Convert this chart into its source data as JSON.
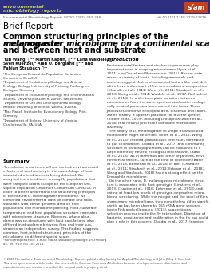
{
  "figsize": [
    2.63,
    3.46
  ],
  "dpi": 100,
  "bg_color": "#ffffff",
  "header_bg": "#2d3080",
  "header_text1": "environmental",
  "header_text2": "microbiology reports",
  "header_text_color": "#c8d44e",
  "slam_bg": "#c8401a",
  "slam_text": "s̸am",
  "journal_line": "Environmental Microbiology Reports (2020) 12(2), 220–228",
  "doi_line": "doi:10.1111/1758-2229.12828",
  "brief_report": "Brief Report",
  "title_part1": "Common structuring principles of the ",
  "title_italic1": "Drosophila",
  "title_italic2": "melanogaster",
  "title_part2": " microbiome on a continental scale",
  "title_part3": "and between host and substrate",
  "authors_line1": "Yun Wang, ⓘ¹² Martin Kapun, ⓘ¹²³ Lana Waidele, ⓘ¹²",
  "authors_line2": "Sven Kuenzel,² Alan O. Bergland ⓘ¹³⁴ and",
  "authors_line3": "Fabian Staubach ⓘ¹²",
  "affiliations": "¹The European Drosophila Population Genomics\nConsortium (DrosEU).\n²Department of Evolutionary Biology and Animal\nEcology, Biology I, University of Freiburg, Freiburg im\nBreisgau, Germany.\n³Department of Evolutionary Biology and Environmental\nStudies, University of Zürich, Zürich, Switzerland.\n⁴Department of Cell and Developmental Biology,\nMedical University of Vienna, Vienna, Austria.\n⁵Max Planck Institute for Evolutionary Biology, Plön,\nGermany.\n⁶Department of Biology, University of Virginia,\nCharlottesville, VA, USA.",
  "summary_title": "Summary",
  "summary_text": "The relative importance of host control, environmental\neffects and stochasticity in the assemblage of host-\nassociated microbiomes is being debated. We\nanalysed the microbiome among fly populations that\nwere sampled across Europe by the European Dro-\nsophila Population Genomics Consortium (DrosEU), in\norder to better understand the structuring principles\nof the natural D. melanogaster microbiome, we\ncombined environmental data on climate and food-\nsubstrate with dense genomic data on host\npopulations and microbiome profiling. Food-substrate,\ntemperature, and host population structure correlated\nwith microbiome structure. Microbes, whose abun-\ndance was co-structured with host populations, also\ndiffered in abundance between flies and their sub-\nstrate in an independent survey. This finding suggests\ncommon, host-related structuring principles of the\nmicrobiome on different spatial scales.",
  "footnote": "*For correspondence. E-mail: fabian.staubach@biologie.uni-freiburg.\nde; Tel. +49 761 203 2511.",
  "copyright": "© 2020 The Authors. Environmental Microbiology Reports published by Society for Applied Microbiology and John Wiley & Sons Ltd.\nThis is an open access article under the terms of the Creative Commons Attribution License, which permits use, distribution and\nreproduction in any medium, provided the original work is properly cited.",
  "intro_title": "Introduction",
  "intro_text": "Environmental factors and stochastic processes play\nimportant roles in shaping microbiomes (Spor et al.,\n2011; van Opstal and Bordenstein, 2015). Recent data\nacross a variety of hosts, including mammals and\ninsects, suggest that environmental factors like host diet\noften have a dominant effect on microbiome composition\n(Chandler et al., 2011; Wu et al., 2011; Staubach et al.,\n2013; Wang et al., 2014; Waidele et al., 2017; Rothschild\net al., 2018). In order to explain variation between\nmicrobiomes from the same species, stochastic, ecologi-\ncally neutral processes have moved into focus. These\nprocesses comprise ecological drift, dispersal and coloni-\nzation history. It appears plausible for diverse species\n(Sieber et al., 2019), including Drosophila (Adair et al.,\n2018) that neutral processes dominate microbiome\nassembly.\n  The ability of D. melanogaster to shape its associated\nmicrobiome might be limited (Blum et al., 2013; Wong\net al., 2013). Instead, probabilistic processes contribute\nto gut colonization (Obadia et al., 2017) and community\nstructure in natural populations can be explained to a\nlarge extent by neutral ecological mechanisms (Adair\net al., 2018). As in mammals and other organisms, envi-\nronmental factors, such as the time of collection (Adair\net al., 2018; Behrenan et al., 2018) or diet (Chandler\net al., 2011; Staubach et al., 2013; Erkosar et al., 2018;\nWang and Staubach, 2018) have a strong effect on the\nDrosophila microbiome.\n  On the other hand, D. melanogaster microbiome struc-\nture is associated with host genotype (Linstress et al.,\n2013; Chaston et al., 2016; Behrenan et al., 2018), indi-\ncating at least low levels of genotype-dependent micro-\nbiome structuring. While the midgut and the stool of flies\nshare many microbial taxa, they nonetheless differ signifi-\ncantly as has been shown by 16S rRNA gene sequenc-\ning in Fink and colleagues, (2013), suggesting a\nselection process inside the fly takes place. Digestion of\nbacteria, persistence and proliferation in the fly gut could\nplay a role in this process (Obadia et al., 2017; Inamine"
}
